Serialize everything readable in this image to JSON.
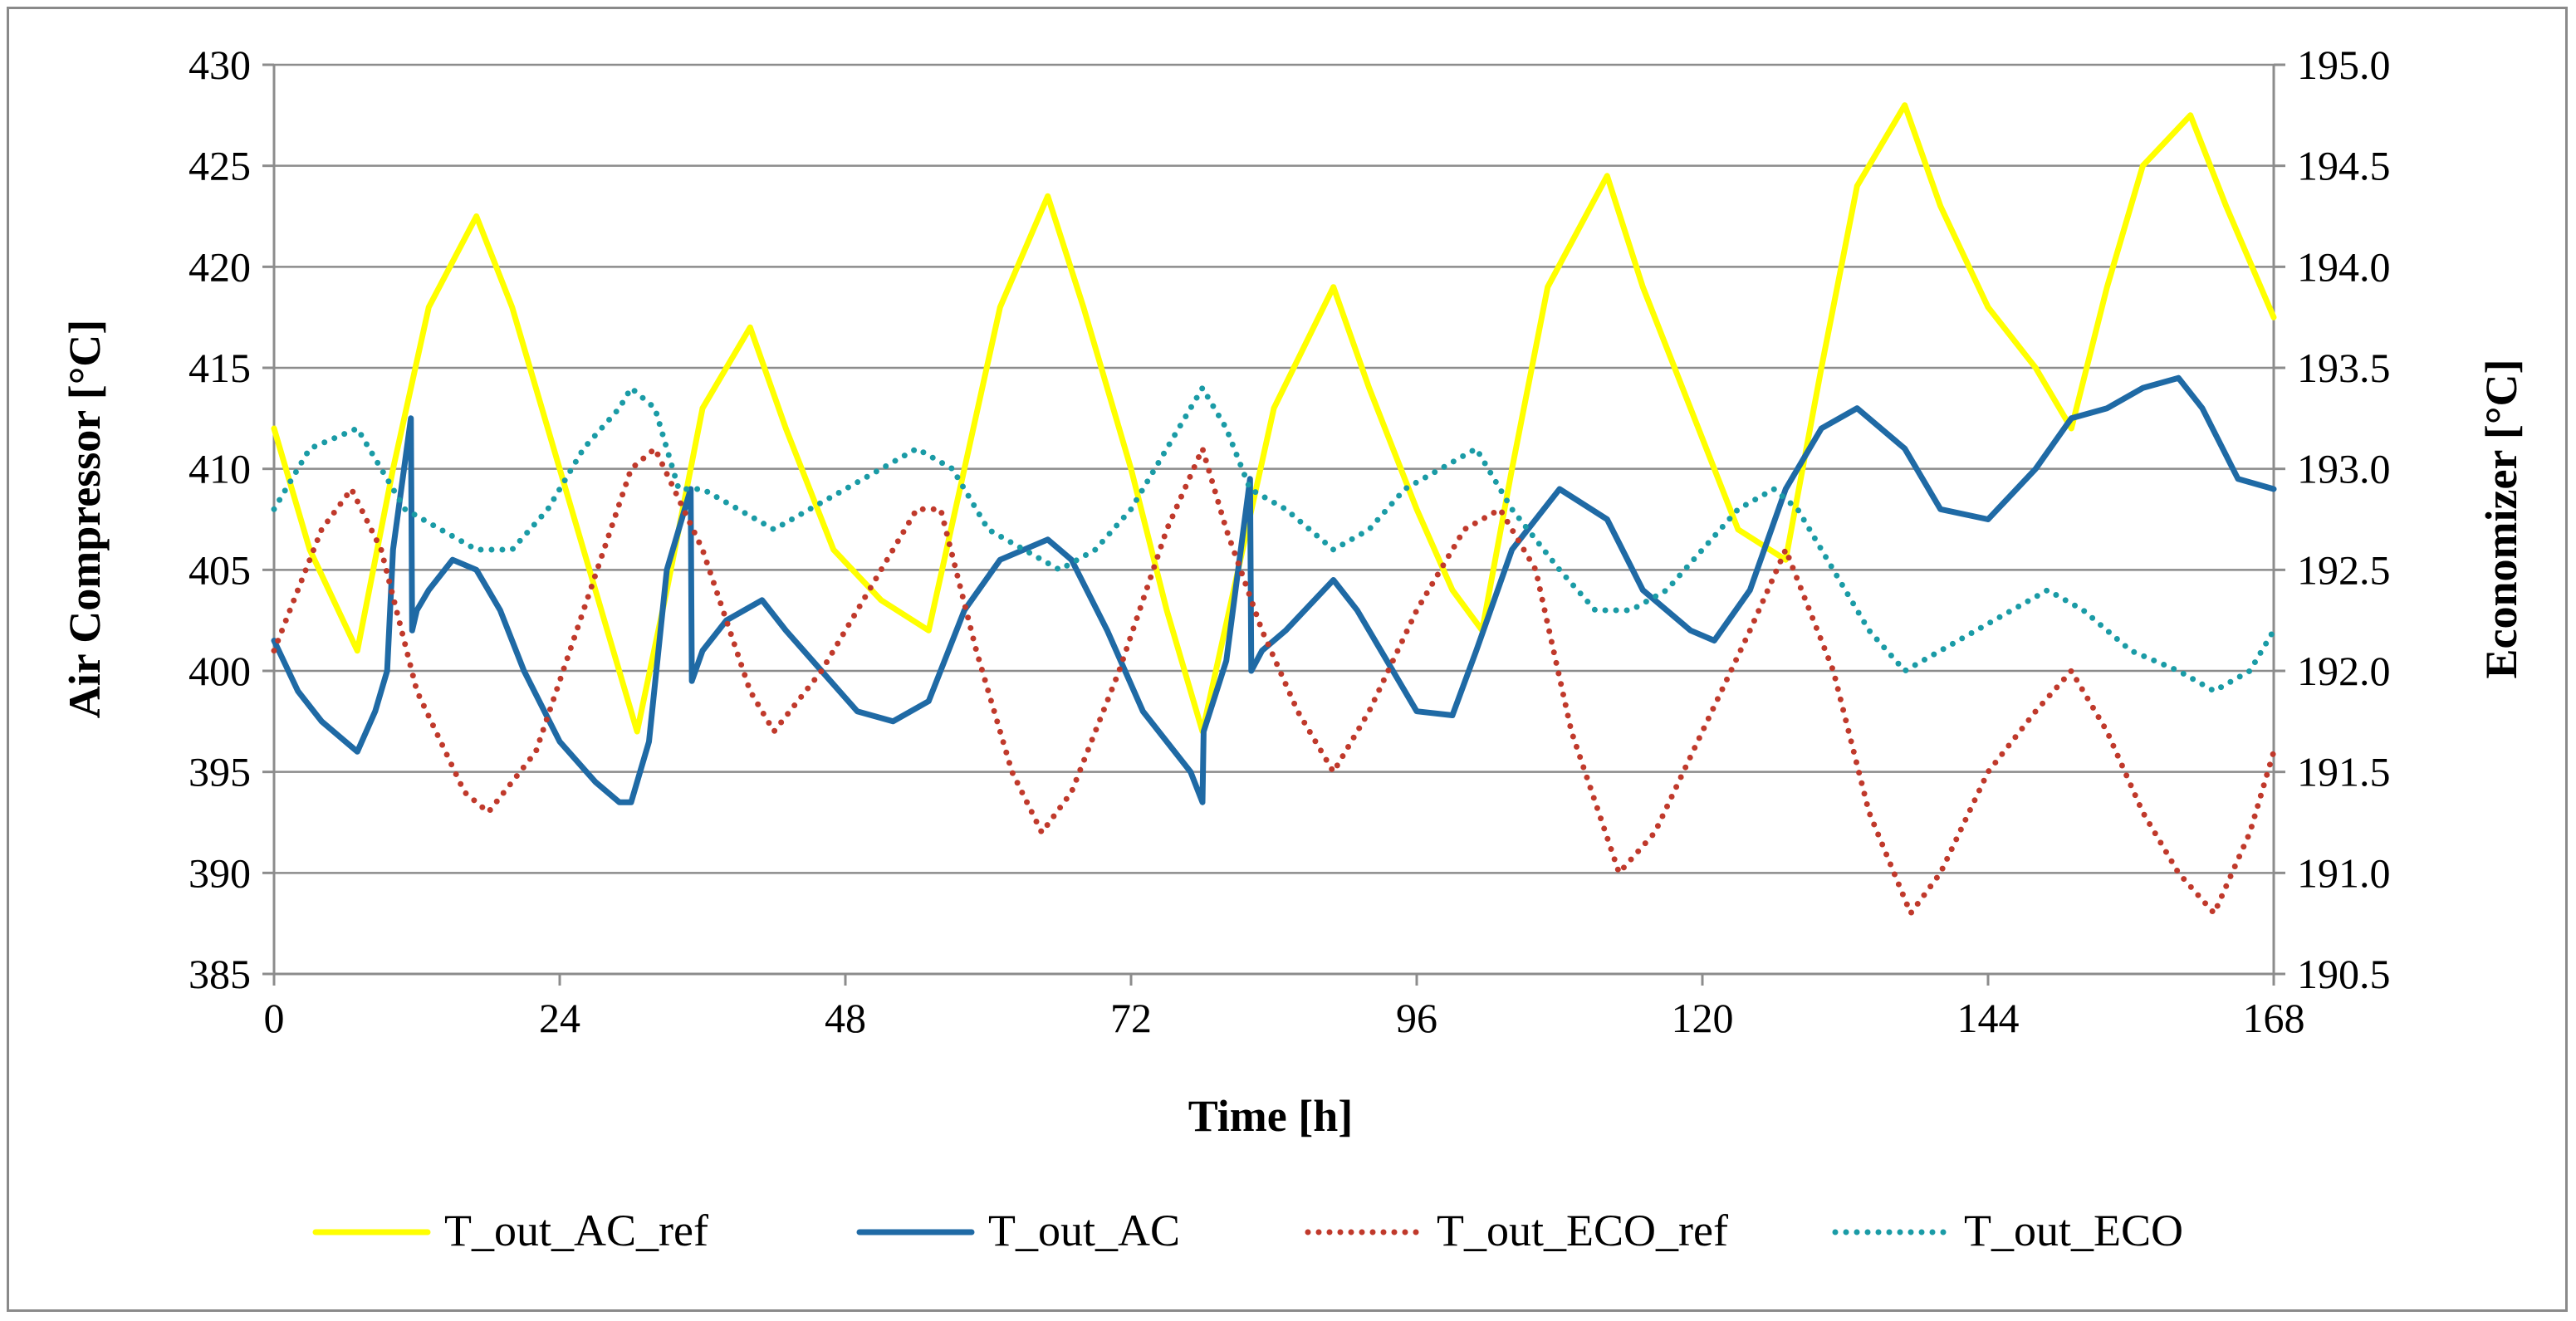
{
  "chart_data": {
    "type": "line",
    "title": "",
    "xlabel": "Time [h]",
    "ylabel_left": "Air Compressor [°C]",
    "ylabel_right": "Economizer [°C]",
    "xlim": [
      0,
      168
    ],
    "ylim_left": [
      385,
      430
    ],
    "ylim_right": [
      190.5,
      195.0
    ],
    "xticks": [
      0,
      24,
      48,
      72,
      96,
      120,
      144,
      168
    ],
    "xtick_labels": [
      "0",
      "24",
      "48",
      "72",
      "96",
      "120",
      "144",
      "168"
    ],
    "yticks_left": [
      385,
      390,
      395,
      400,
      405,
      410,
      415,
      420,
      425,
      430
    ],
    "ytick_labels_left": [
      "385",
      "390",
      "395",
      "400",
      "405",
      "410",
      "415",
      "420",
      "425",
      "430"
    ],
    "yticks_right": [
      190.5,
      191.0,
      191.5,
      192.0,
      192.5,
      193.0,
      193.5,
      194.0,
      194.5,
      195.0
    ],
    "ytick_labels_right": [
      "190.5",
      "191.0",
      "191.5",
      "192.0",
      "192.5",
      "193.0",
      "193.5",
      "194.0",
      "194.5",
      "195.0"
    ],
    "grid": "horizontal",
    "legend_position": "bottom",
    "series": [
      {
        "name": "T_out_AC_ref",
        "axis": "left",
        "color": "#FFFF00",
        "style": "solid",
        "x": [
          0,
          3,
          7,
          10,
          13,
          17,
          20,
          24,
          28,
          30.5,
          33,
          36,
          40,
          43,
          47,
          51,
          55,
          58,
          61,
          65,
          68,
          72,
          75,
          78,
          81,
          84,
          89,
          92,
          96,
          99,
          101.5,
          104,
          107,
          112,
          115,
          119,
          123,
          127,
          130,
          133,
          137,
          140,
          144,
          148,
          151,
          154,
          157,
          161,
          164,
          168
        ],
        "values": [
          412,
          406,
          401,
          410,
          418,
          422.5,
          418,
          410,
          402,
          397,
          404,
          413,
          417,
          412,
          406,
          403.5,
          402,
          410,
          418,
          423.5,
          418,
          410,
          403,
          397,
          405,
          413,
          419,
          414,
          408,
          404,
          402,
          410,
          419,
          424.5,
          419,
          413,
          407,
          405.5,
          415,
          424,
          428,
          423,
          418,
          415,
          412,
          419,
          425,
          427.5,
          423,
          417.5
        ]
      },
      {
        "name": "T_out_AC",
        "axis": "left",
        "color": "#1F6AA5",
        "style": "solid",
        "x": [
          0,
          2,
          4,
          6,
          7,
          8.5,
          9.5,
          10,
          11.5,
          11.6,
          12,
          13,
          15,
          17,
          19,
          21,
          24,
          27,
          29,
          30,
          31.5,
          33,
          35,
          35.1,
          36,
          38,
          41,
          43,
          46,
          49,
          52,
          55,
          58,
          61,
          65,
          67,
          70,
          73,
          77,
          78,
          78.1,
          80,
          82,
          82.1,
          83,
          85,
          89,
          91,
          93,
          96,
          99,
          101,
          104,
          108,
          112,
          115,
          119,
          121,
          124,
          127,
          130,
          133,
          137,
          140,
          144,
          148,
          151,
          154,
          157,
          160,
          162,
          165,
          168
        ],
        "values": [
          401.5,
          399,
          397.5,
          396.5,
          396,
          398,
          400,
          406,
          412.5,
          402,
          403,
          404,
          405.5,
          405,
          403,
          400,
          396.5,
          394.5,
          393.5,
          393.5,
          396.5,
          405,
          409,
          399.5,
          401,
          402.5,
          403.5,
          402,
          400,
          398,
          397.5,
          398.5,
          403,
          405.5,
          406.5,
          405.5,
          402,
          398,
          395,
          393.5,
          397,
          400.5,
          409.5,
          400,
          401,
          402,
          404.5,
          403,
          401,
          398,
          397.8,
          401,
          406,
          409,
          407.5,
          404,
          402,
          401.5,
          404,
          409,
          412,
          413,
          411,
          408,
          407.5,
          410,
          412.5,
          413,
          414,
          414.5,
          413,
          409.5,
          409
        ]
      },
      {
        "name": "T_out_ECO_ref",
        "axis": "right",
        "color": "#C0392B",
        "style": "dotted",
        "x": [
          0,
          4,
          6.5,
          9,
          12,
          16,
          18,
          22,
          26,
          30,
          32,
          36,
          40,
          42,
          46,
          50,
          54,
          56,
          59,
          62,
          64.5,
          67,
          71,
          75,
          78,
          80,
          83,
          86,
          89,
          92,
          96,
          100,
          103,
          106,
          109,
          113,
          116,
          120,
          124,
          127,
          131,
          134,
          137.5,
          140,
          144,
          148,
          151,
          154,
          157,
          160,
          163,
          166,
          168
        ],
        "values": [
          192.1,
          192.7,
          192.9,
          192.6,
          191.9,
          191.4,
          191.3,
          191.6,
          192.3,
          193.0,
          193.1,
          192.6,
          191.9,
          191.7,
          192.0,
          192.4,
          192.8,
          192.8,
          192.1,
          191.5,
          191.2,
          191.4,
          192.0,
          192.7,
          193.1,
          192.7,
          192.2,
          191.8,
          191.5,
          191.8,
          192.3,
          192.7,
          192.8,
          192.5,
          191.7,
          191.0,
          191.2,
          191.7,
          192.2,
          192.6,
          192.0,
          191.3,
          190.8,
          191.0,
          191.5,
          191.8,
          192.0,
          191.7,
          191.3,
          191.0,
          190.8,
          191.2,
          191.6
        ]
      },
      {
        "name": "T_out_ECO",
        "axis": "right",
        "color": "#1A9BA6",
        "style": "dotted",
        "x": [
          0,
          3,
          7,
          9,
          11,
          14,
          17,
          20,
          23,
          26,
          29,
          30,
          32,
          34,
          36,
          39,
          42,
          45,
          48,
          51,
          54,
          57,
          60,
          63,
          66,
          69,
          72,
          75,
          78,
          80,
          82,
          85,
          89,
          92,
          95,
          98,
          101,
          104,
          108,
          111,
          114,
          117,
          120,
          123,
          126,
          128,
          131,
          134,
          137,
          140,
          143,
          146,
          149,
          152,
          156,
          160,
          163,
          166,
          168
        ],
        "values": [
          192.8,
          193.1,
          193.2,
          193.0,
          192.8,
          192.7,
          192.6,
          192.6,
          192.8,
          193.1,
          193.3,
          193.4,
          193.3,
          192.9,
          192.9,
          192.8,
          192.7,
          192.8,
          192.9,
          193.0,
          193.1,
          193.0,
          192.7,
          192.6,
          192.5,
          192.6,
          192.8,
          193.1,
          193.4,
          193.2,
          192.9,
          192.8,
          192.6,
          192.7,
          192.9,
          193.0,
          193.1,
          192.8,
          192.5,
          192.3,
          192.3,
          192.4,
          192.6,
          192.8,
          192.9,
          192.8,
          192.5,
          192.2,
          192.0,
          192.1,
          192.2,
          192.3,
          192.4,
          192.3,
          192.1,
          192.0,
          191.9,
          192.0,
          192.2
        ]
      }
    ]
  }
}
